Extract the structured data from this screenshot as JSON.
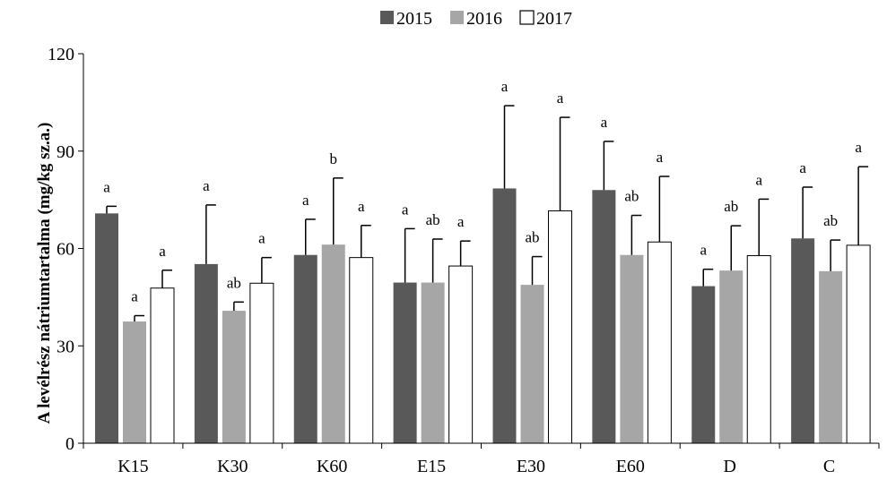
{
  "chart_data": {
    "type": "bar",
    "ylabel": "A levélrész nátriumtartalma (mg/kg sz.a.)",
    "ylim": [
      0,
      120
    ],
    "yticks": [
      0,
      30,
      60,
      90,
      120
    ],
    "grid": false,
    "legend_position": "top-center",
    "categories": [
      "K15",
      "K30",
      "K60",
      "E15",
      "E30",
      "E60",
      "D",
      "C"
    ],
    "series": [
      {
        "name": "2015",
        "color": "#595959",
        "values": [
          70.8,
          55.2,
          58.0,
          49.5,
          78.5,
          78.0,
          48.4,
          63.1
        ],
        "errors": [
          2.2,
          18.2,
          11.0,
          16.6,
          25.5,
          15.0,
          5.2,
          15.8
        ],
        "labels": [
          "a",
          "a",
          "a",
          "a",
          "a",
          "a",
          "a",
          "a"
        ]
      },
      {
        "name": "2016",
        "color": "#a6a6a6",
        "values": [
          37.5,
          40.8,
          61.2,
          49.5,
          48.8,
          58.0,
          53.2,
          53.0
        ],
        "errors": [
          1.8,
          2.7,
          20.5,
          13.4,
          8.7,
          12.2,
          13.8,
          9.6
        ],
        "labels": [
          "a",
          "ab",
          "b",
          "ab",
          "ab",
          "ab",
          "ab",
          "ab"
        ]
      },
      {
        "name": "2017",
        "color": "#ffffff",
        "values": [
          47.8,
          49.3,
          57.2,
          54.6,
          71.6,
          62.0,
          57.8,
          61.0
        ],
        "errors": [
          5.5,
          7.9,
          9.9,
          7.7,
          28.8,
          20.2,
          17.4,
          24.2
        ],
        "labels": [
          "a",
          "a",
          "a",
          "a",
          "a",
          "a",
          "a",
          "a"
        ]
      }
    ]
  }
}
